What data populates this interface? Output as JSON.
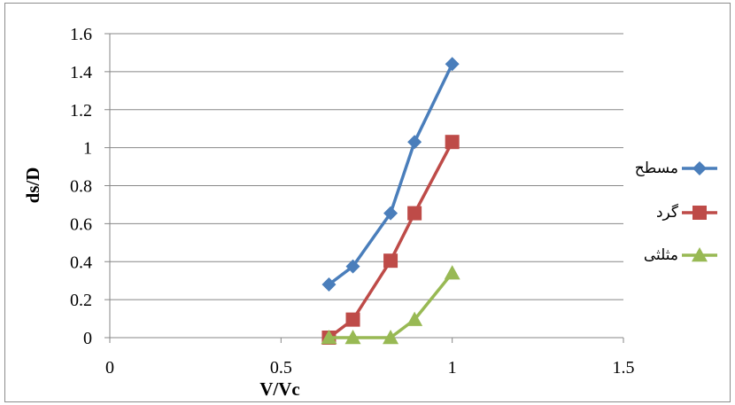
{
  "chart_data": {
    "type": "scatter",
    "xlabel": "V/Vc",
    "ylabel": "ds/D",
    "xlim": [
      0,
      1.5
    ],
    "ylim": [
      0,
      1.6
    ],
    "xticks": [
      "0",
      "0.5",
      "1",
      "1.5"
    ],
    "yticks": [
      "0",
      "0.2",
      "0.4",
      "0.6",
      "0.8",
      "1",
      "1.2",
      "1.4",
      "1.6"
    ],
    "grid": "horizontal",
    "legend_position": "right",
    "series": [
      {
        "name": "مسطح",
        "color": "#4a7ebb",
        "marker": "diamond",
        "x": [
          0.64,
          0.71,
          0.82,
          0.89,
          1.0
        ],
        "y": [
          0.28,
          0.375,
          0.655,
          1.03,
          1.44
        ]
      },
      {
        "name": "گرد",
        "color": "#be4b48",
        "marker": "square",
        "x": [
          0.64,
          0.71,
          0.82,
          0.89,
          1.0
        ],
        "y": [
          0.0,
          0.095,
          0.405,
          0.655,
          1.03
        ]
      },
      {
        "name": "مثلثی",
        "color": "#98b954",
        "marker": "triangle",
        "x": [
          0.64,
          0.71,
          0.82,
          0.89,
          1.0
        ],
        "y": [
          0.0,
          0.0,
          0.0,
          0.095,
          0.34
        ]
      }
    ]
  }
}
